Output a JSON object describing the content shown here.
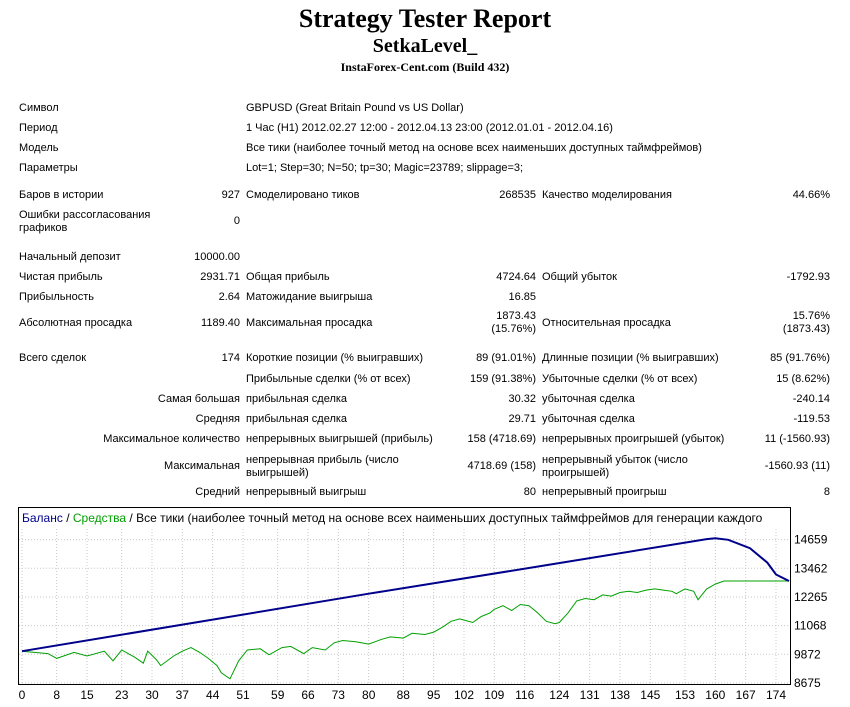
{
  "header": {
    "title": "Strategy Tester Report",
    "expert": "SetkaLevel_",
    "server": "InstaForex-Cent.com (Build 432)"
  },
  "info": {
    "symbol_label": "Символ",
    "symbol_value": "GBPUSD (Great Britain Pound vs US Dollar)",
    "period_label": "Период",
    "period_value": "1 Час (H1) 2012.02.27 12:00 - 2012.04.13 23:00 (2012.01.01 - 2012.04.16)",
    "model_label": "Модель",
    "model_value": "Все тики (наиболее точный метод на основе всех наименьших доступных таймфреймов)",
    "params_label": "Параметры",
    "params_value": "Lot=1; Step=30; N=50; tp=30; Magic=23789; slippage=3;"
  },
  "stats": {
    "bars_label": "Баров в истории",
    "bars_value": "927",
    "ticks_label": "Смоделировано тиков",
    "ticks_value": "268535",
    "quality_label": "Качество моделирования",
    "quality_value": "44.66%",
    "errors_label": "Ошибки рассогласования графиков",
    "errors_value": "0",
    "deposit_label": "Начальный депозит",
    "deposit_value": "10000.00",
    "net_label": "Чистая прибыль",
    "net_value": "2931.71",
    "gross_profit_label": "Общая прибыль",
    "gross_profit_value": "4724.64",
    "gross_loss_label": "Общий убыток",
    "gross_loss_value": "-1792.93",
    "pf_label": "Прибыльность",
    "pf_value": "2.64",
    "payoff_label": "Матожидание выигрыша",
    "payoff_value": "16.85",
    "abs_dd_label": "Абсолютная просадка",
    "abs_dd_value": "1189.40",
    "max_dd_label": "Максимальная просадка",
    "max_dd_value1": "1873.43",
    "max_dd_value2": "(15.76%)",
    "rel_dd_label": "Относительная просадка",
    "rel_dd_value1": "15.76%",
    "rel_dd_value2": "(1873.43)",
    "total_label": "Всего сделок",
    "total_value": "174",
    "short_label": "Короткие позиции (% выигравших)",
    "short_value": "89 (91.01%)",
    "long_label": "Длинные позиции (% выигравших)",
    "long_value": "85 (91.76%)",
    "profit_trades_label": "Прибыльные сделки (% от всех)",
    "profit_trades_value": "159 (91.38%)",
    "loss_trades_label": "Убыточные сделки (% от всех)",
    "loss_trades_value": "15 (8.62%)",
    "largest_label": "Самая большая",
    "largest_profit_label": "прибыльная сделка",
    "largest_profit_value": "30.32",
    "largest_loss_label": "убыточная сделка",
    "largest_loss_value": "-240.14",
    "average_label": "Средняя",
    "average_profit_label": "прибыльная сделка",
    "average_profit_value": "29.71",
    "average_loss_label": "убыточная сделка",
    "average_loss_value": "-119.53",
    "maxcount_label": "Максимальное количество",
    "maxcount_wins_label": "непрерывных выигрышей (прибыль)",
    "maxcount_wins_value": "158 (4718.69)",
    "maxcount_losses_label": "непрерывных проигрышей (убыток)",
    "maxcount_losses_value": "11 (-1560.93)",
    "maximal_label": "Максимальная",
    "maximal_profit_label": "непрерывная прибыль (число выигрышей)",
    "maximal_profit_value": "4718.69 (158)",
    "maximal_loss_label": "непрерывный убыток (число проигрышей)",
    "maximal_loss_value": "-1560.93 (11)",
    "avg_cons_label": "Средний",
    "avg_cons_wins_label": "непрерывный выигрыш",
    "avg_cons_wins_value": "80",
    "avg_cons_losses_label": "непрерывный проигрыш",
    "avg_cons_losses_value": "8"
  },
  "chart_data": {
    "type": "line",
    "legend": {
      "balance": "Баланс",
      "sep1": " / ",
      "equity": "Средства",
      "sep2": " / ",
      "model": "Все тики (наиболее точный метод на основе всех наименьших доступных таймфреймов для генерации каждого"
    },
    "colors": {
      "balance": "#00008b",
      "equity": "#00a000",
      "grid": "#c8c8c8"
    },
    "xlim": [
      0,
      177
    ],
    "ylim": [
      8675,
      15100
    ],
    "x_ticks": [
      0,
      8,
      15,
      23,
      30,
      37,
      44,
      51,
      59,
      66,
      73,
      80,
      88,
      95,
      102,
      109,
      116,
      124,
      131,
      138,
      145,
      153,
      160,
      167,
      174
    ],
    "y_ticks": [
      14659,
      13462,
      12265,
      11068,
      9872,
      8675
    ],
    "series": [
      {
        "name": "Баланс",
        "x": [
          0,
          40,
          80,
          120,
          158,
          160,
          163,
          168,
          172,
          174,
          177
        ],
        "y": [
          10000,
          11200,
          12400,
          13560,
          14680,
          14710,
          14650,
          14300,
          13700,
          13200,
          12932
        ]
      },
      {
        "name": "Средства",
        "x": [
          0,
          6,
          8,
          12,
          15,
          19,
          21,
          23,
          26,
          28,
          29,
          31,
          32,
          35,
          37,
          39,
          41,
          43,
          45,
          46,
          48,
          50,
          52,
          55,
          57,
          60,
          62,
          65,
          67,
          70,
          72,
          74,
          77,
          80,
          83,
          85,
          88,
          90,
          93,
          95,
          97,
          99,
          101,
          104,
          106,
          108,
          109,
          111,
          113,
          115,
          117,
          119,
          121,
          123,
          124,
          126,
          128,
          130,
          132,
          134,
          136,
          138,
          140,
          142,
          144,
          146,
          148,
          150,
          151,
          153,
          155,
          156,
          158,
          160,
          162,
          165,
          177
        ],
        "y": [
          10000,
          9900,
          9700,
          9950,
          9800,
          10000,
          9600,
          10050,
          9750,
          9500,
          10000,
          9650,
          9400,
          9800,
          10000,
          10150,
          9950,
          9700,
          9400,
          9100,
          8850,
          9600,
          10050,
          10100,
          9850,
          10150,
          10200,
          9900,
          10150,
          10050,
          10350,
          10450,
          10400,
          10300,
          10500,
          10600,
          10550,
          10750,
          10700,
          10800,
          11000,
          11250,
          11350,
          11200,
          11450,
          11600,
          11750,
          11900,
          11700,
          11950,
          11900,
          11600,
          11250,
          11150,
          11200,
          11600,
          12100,
          12200,
          12150,
          12350,
          12300,
          12450,
          12500,
          12450,
          12550,
          12600,
          12550,
          12500,
          12400,
          12600,
          12500,
          12150,
          12600,
          12800,
          12930,
          12932,
          12932
        ]
      }
    ]
  }
}
